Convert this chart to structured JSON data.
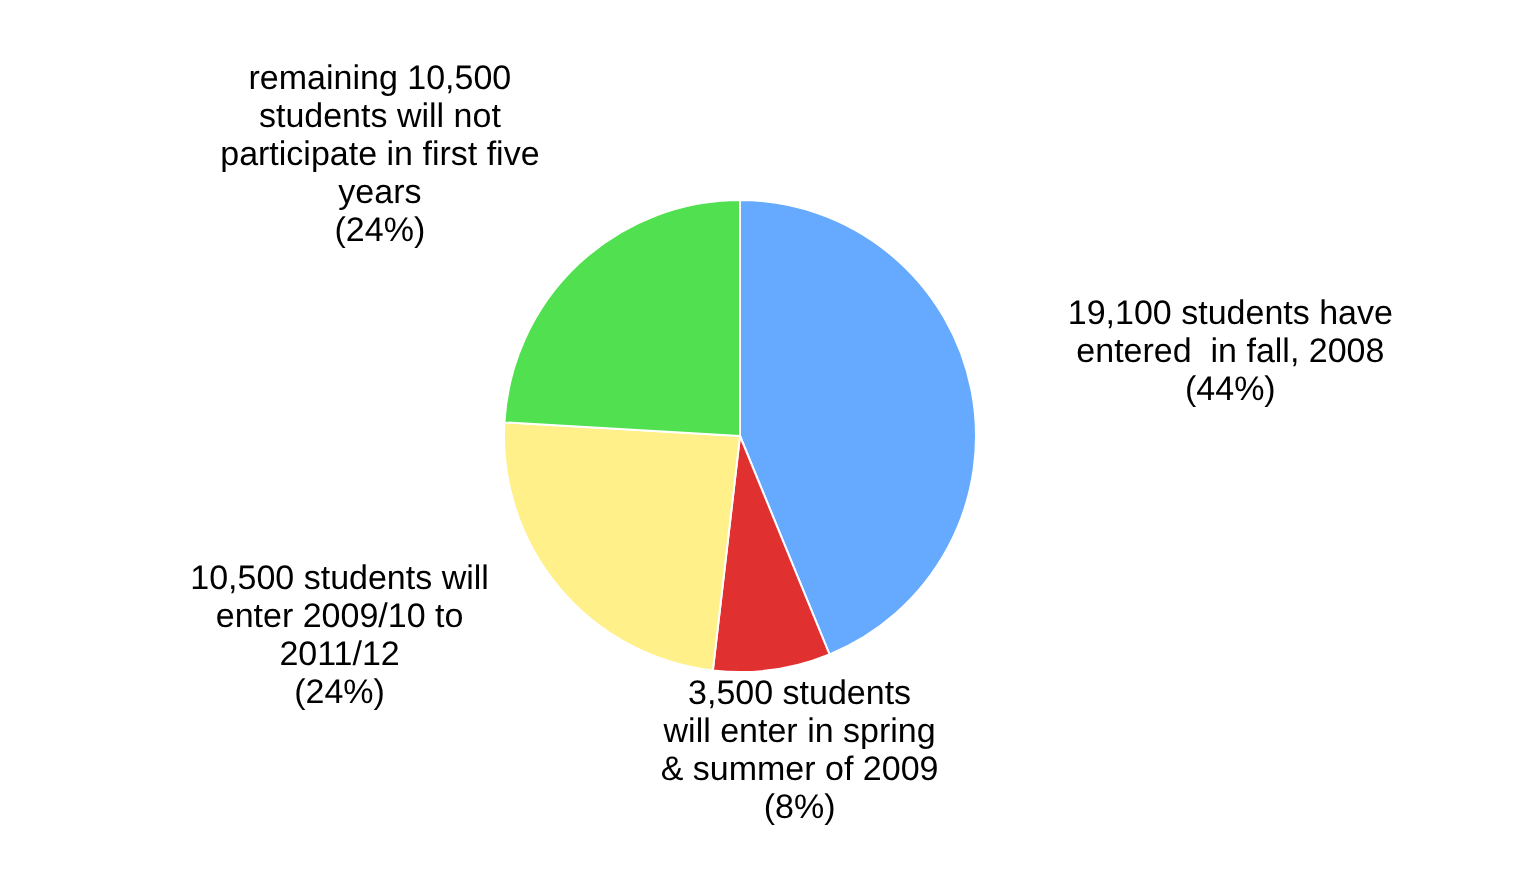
{
  "chart_data": {
    "type": "pie",
    "categories": [
      "19,100 students have\nentered  in fall, 2008\n(44%)",
      "3,500 students\nwill enter in spring\n& summer of 2009\n(8%)",
      "10,500 students will\nenter 2009/10 to\n2011/12\n(24%)",
      "remaining 10,500\nstudents will not\nparticipate in first five\nyears\n(24%)"
    ],
    "values": [
      19100,
      3500,
      10500,
      10500
    ],
    "colors": [
      "#66aaff",
      "#e03030",
      "#fff08a",
      "#50e050"
    ]
  }
}
